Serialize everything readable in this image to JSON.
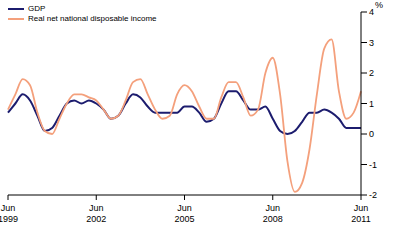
{
  "chart_data": {
    "type": "line",
    "y_label": "%",
    "categories": [
      "Jun 1999",
      null,
      null,
      null,
      null,
      null,
      null,
      null,
      null,
      null,
      null,
      null,
      "Jun 2002",
      null,
      null,
      null,
      null,
      null,
      null,
      null,
      null,
      null,
      null,
      null,
      "Jun 2005",
      null,
      null,
      null,
      null,
      null,
      null,
      null,
      null,
      null,
      null,
      null,
      "Jun 2008",
      null,
      null,
      null,
      null,
      null,
      null,
      null,
      null,
      null,
      null,
      null,
      "Jun 2011"
    ],
    "series": [
      {
        "name": "GDP",
        "color": "#1c1c6e",
        "values": [
          0.7,
          1.0,
          1.3,
          1.1,
          0.6,
          0.1,
          0.2,
          0.6,
          1.0,
          1.1,
          1.0,
          1.1,
          1.0,
          0.8,
          0.5,
          0.6,
          1.0,
          1.3,
          1.2,
          0.9,
          0.7,
          0.7,
          0.7,
          0.7,
          0.9,
          0.9,
          0.7,
          0.4,
          0.5,
          1.0,
          1.4,
          1.4,
          1.1,
          0.8,
          0.8,
          0.9,
          0.5,
          0.1,
          0.0,
          0.1,
          0.4,
          0.7,
          0.7,
          0.8,
          0.7,
          0.5,
          0.2,
          0.2,
          0.2
        ]
      },
      {
        "name": "Real net national disposable income",
        "color": "#f4a07c",
        "values": [
          0.8,
          1.3,
          1.8,
          1.6,
          0.7,
          0.1,
          0.0,
          0.5,
          1.0,
          1.3,
          1.3,
          1.2,
          1.1,
          0.8,
          0.5,
          0.6,
          1.1,
          1.7,
          1.8,
          1.3,
          0.8,
          0.5,
          0.6,
          1.3,
          1.6,
          1.4,
          0.9,
          0.5,
          0.5,
          1.2,
          1.7,
          1.7,
          1.2,
          0.6,
          0.8,
          2.0,
          2.5,
          1.3,
          -0.9,
          -1.9,
          -1.6,
          -0.5,
          1.3,
          2.8,
          3.1,
          1.4,
          0.5,
          0.7,
          1.4
        ]
      }
    ],
    "ylim": [
      -2,
      4
    ],
    "yticks": [
      -2,
      -1,
      0,
      1,
      2,
      3,
      4
    ],
    "legend": "top left"
  }
}
